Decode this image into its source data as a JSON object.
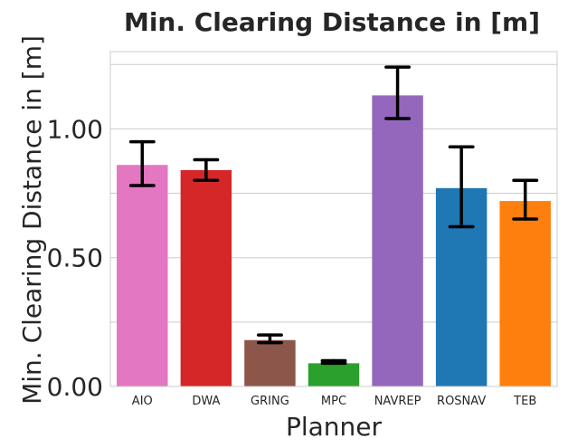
{
  "chart_data": {
    "type": "bar",
    "title": "Min. Clearing Distance in [m]",
    "xlabel": "Planner",
    "ylabel": "Min. Clearing Distance in [m]",
    "categories": [
      "AIO",
      "DWA",
      "GRING",
      "MPC",
      "NAVREP",
      "ROSNAV",
      "TEB"
    ],
    "values": [
      0.86,
      0.84,
      0.18,
      0.09,
      1.13,
      0.77,
      0.72
    ],
    "error_low": [
      0.78,
      0.8,
      0.17,
      0.09,
      1.04,
      0.62,
      0.65
    ],
    "error_high": [
      0.95,
      0.88,
      0.2,
      0.1,
      1.24,
      0.93,
      0.8
    ],
    "colors": [
      "#e377c2",
      "#d62728",
      "#8c564b",
      "#2ca02c",
      "#9467bd",
      "#1f77b4",
      "#ff7f0e"
    ],
    "ylim": [
      0,
      1.3
    ],
    "yticks_labeled": [
      "0.00",
      "0.50",
      "1.00"
    ],
    "yticks_values": [
      0,
      0.5,
      1.0
    ],
    "grid_values": [
      0,
      0.25,
      0.5,
      0.75,
      1.0,
      1.25
    ],
    "grid": true,
    "legend": "none"
  }
}
